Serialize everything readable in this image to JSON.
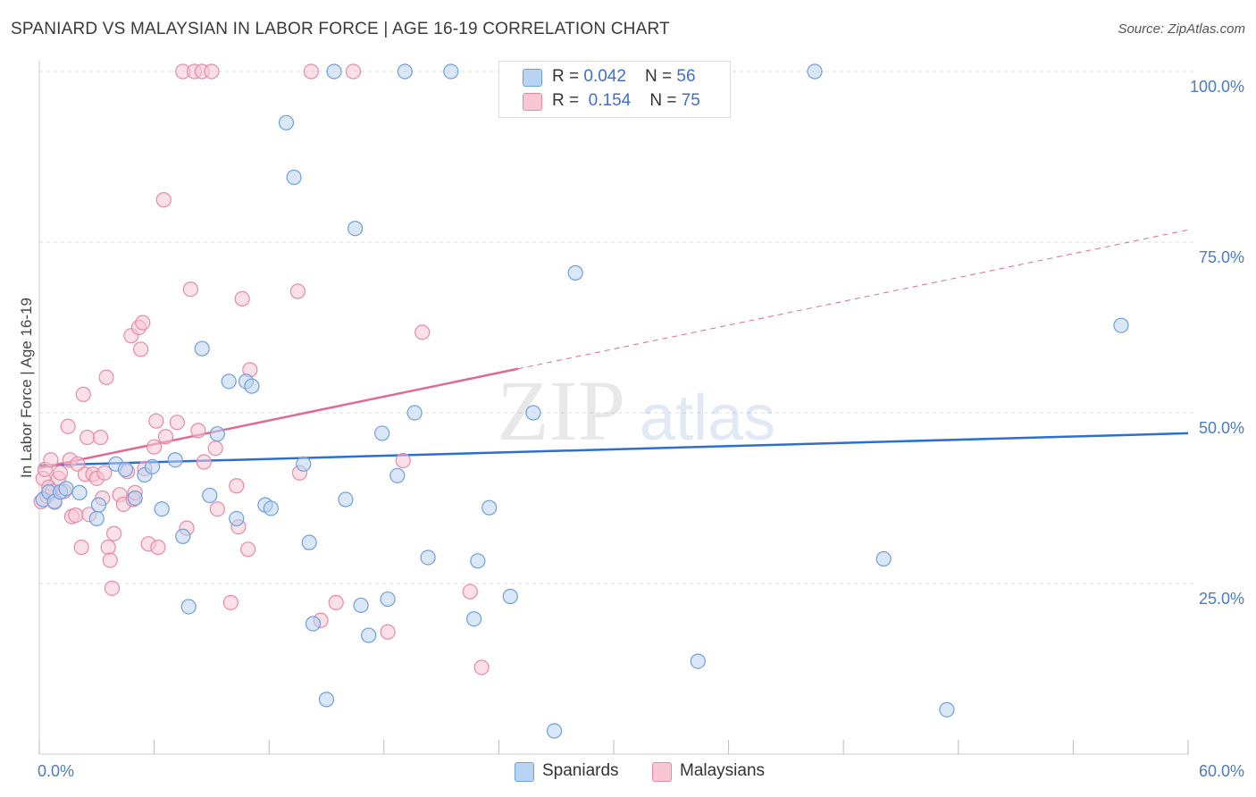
{
  "title": "SPANIARD VS MALAYSIAN IN LABOR FORCE | AGE 16-19 CORRELATION CHART",
  "source": "Source: ZipAtlas.com",
  "watermark": {
    "left": "ZIP",
    "right": "atlas"
  },
  "legend_top": {
    "rows": [
      {
        "r_label": "R = ",
        "r_value": "0.042",
        "n_label": "N = ",
        "n_value": "56"
      },
      {
        "r_label": "R = ",
        "r_value": "0.154",
        "n_label": "N = ",
        "n_value": "75"
      }
    ]
  },
  "colors": {
    "blue_fill": "#b9d3f3",
    "blue_stroke": "#6d9fdd",
    "blue_line": "#2b6fcf",
    "pink_fill": "#f9c6d4",
    "pink_stroke": "#e88aa6",
    "pink_line": "#e06a93",
    "tick_text": "#4a7cc7",
    "grid": "#dddddd"
  },
  "chart_data": {
    "type": "scatter",
    "title": "SPANIARD VS MALAYSIAN IN LABOR FORCE | AGE 16-19 CORRELATION CHART",
    "xlabel": "",
    "ylabel": "In Labor Force | Age 16-19",
    "xlim": [
      0,
      60
    ],
    "ylim": [
      0,
      100
    ],
    "x_tick_labels": [
      "0.0%",
      "60.0%"
    ],
    "y_tick_labels": [
      "25.0%",
      "50.0%",
      "75.0%",
      "100.0%"
    ],
    "y_ticks": [
      25,
      50,
      75,
      100
    ],
    "grid": true,
    "legend_position": "bottom",
    "series": [
      {
        "name": "Spaniards",
        "r": 0.042,
        "n": 56,
        "trend": {
          "x": [
            0,
            60
          ],
          "y": [
            42.3,
            47.0
          ],
          "dashed_from": null
        },
        "points": [
          [
            0.2,
            37.3
          ],
          [
            0.5,
            38.4
          ],
          [
            0.8,
            37.0
          ],
          [
            1.1,
            38.4
          ],
          [
            1.4,
            38.9
          ],
          [
            2.1,
            38.3
          ],
          [
            3.1,
            36.5
          ],
          [
            3.0,
            34.5
          ],
          [
            4.0,
            42.5
          ],
          [
            4.5,
            41.7
          ],
          [
            5.0,
            37.5
          ],
          [
            5.5,
            40.9
          ],
          [
            5.9,
            42.1
          ],
          [
            6.4,
            35.9
          ],
          [
            7.1,
            43.1
          ],
          [
            7.5,
            31.9
          ],
          [
            7.8,
            21.6
          ],
          [
            8.5,
            59.4
          ],
          [
            8.9,
            37.9
          ],
          [
            9.3,
            46.9
          ],
          [
            9.9,
            54.6
          ],
          [
            10.3,
            34.5
          ],
          [
            10.8,
            54.6
          ],
          [
            11.1,
            53.9
          ],
          [
            11.8,
            36.5
          ],
          [
            12.1,
            36.0
          ],
          [
            12.9,
            92.5
          ],
          [
            13.3,
            84.5
          ],
          [
            13.8,
            42.5
          ],
          [
            14.1,
            31.0
          ],
          [
            14.3,
            19.1
          ],
          [
            15.0,
            8.0
          ],
          [
            15.4,
            100.0
          ],
          [
            16.0,
            37.3
          ],
          [
            16.5,
            77.0
          ],
          [
            16.8,
            21.8
          ],
          [
            17.2,
            17.4
          ],
          [
            17.9,
            47.0
          ],
          [
            18.2,
            22.7
          ],
          [
            18.7,
            40.8
          ],
          [
            19.1,
            100.0
          ],
          [
            19.6,
            50.0
          ],
          [
            20.3,
            28.8
          ],
          [
            21.5,
            100.0
          ],
          [
            22.7,
            19.8
          ],
          [
            22.9,
            28.3
          ],
          [
            23.5,
            36.1
          ],
          [
            24.6,
            23.1
          ],
          [
            25.8,
            50.0
          ],
          [
            26.9,
            3.4
          ],
          [
            28.0,
            70.5
          ],
          [
            34.4,
            13.6
          ],
          [
            40.5,
            100.0
          ],
          [
            44.1,
            28.6
          ],
          [
            47.4,
            6.5
          ],
          [
            56.5,
            62.8
          ]
        ]
      },
      {
        "name": "Malaysians",
        "r": 0.154,
        "n": 75,
        "trend": {
          "x": [
            0,
            60
          ],
          "y": [
            41.9,
            76.8
          ],
          "dashed_from": 25.0
        },
        "points": [
          [
            0.1,
            37.0
          ],
          [
            0.2,
            40.4
          ],
          [
            0.3,
            41.7
          ],
          [
            0.4,
            37.8
          ],
          [
            0.5,
            39.1
          ],
          [
            0.6,
            43.1
          ],
          [
            0.7,
            38.5
          ],
          [
            0.8,
            36.9
          ],
          [
            1.0,
            40.4
          ],
          [
            1.1,
            41.2
          ],
          [
            1.3,
            38.5
          ],
          [
            1.5,
            48.0
          ],
          [
            1.6,
            43.1
          ],
          [
            1.7,
            34.8
          ],
          [
            1.9,
            35.0
          ],
          [
            2.0,
            42.5
          ],
          [
            2.2,
            30.3
          ],
          [
            2.3,
            52.7
          ],
          [
            2.4,
            41.0
          ],
          [
            2.5,
            46.4
          ],
          [
            2.6,
            35.1
          ],
          [
            2.8,
            41.0
          ],
          [
            3.0,
            40.4
          ],
          [
            3.2,
            46.4
          ],
          [
            3.3,
            37.5
          ],
          [
            3.4,
            41.2
          ],
          [
            3.5,
            55.2
          ],
          [
            3.6,
            30.3
          ],
          [
            3.7,
            28.4
          ],
          [
            3.8,
            24.3
          ],
          [
            3.9,
            32.3
          ],
          [
            4.2,
            38.0
          ],
          [
            4.4,
            36.6
          ],
          [
            4.6,
            41.4
          ],
          [
            4.8,
            61.3
          ],
          [
            4.9,
            37.3
          ],
          [
            5.0,
            38.3
          ],
          [
            5.2,
            62.5
          ],
          [
            5.3,
            59.3
          ],
          [
            5.4,
            63.2
          ],
          [
            5.5,
            41.8
          ],
          [
            5.7,
            30.8
          ],
          [
            6.0,
            45.0
          ],
          [
            6.1,
            48.8
          ],
          [
            6.2,
            30.3
          ],
          [
            6.5,
            81.2
          ],
          [
            6.6,
            46.5
          ],
          [
            7.2,
            48.6
          ],
          [
            7.5,
            100.0
          ],
          [
            7.7,
            33.1
          ],
          [
            7.9,
            68.1
          ],
          [
            8.1,
            100.0
          ],
          [
            8.3,
            47.4
          ],
          [
            8.5,
            100.0
          ],
          [
            8.6,
            42.8
          ],
          [
            9.0,
            100.0
          ],
          [
            9.2,
            44.8
          ],
          [
            9.3,
            35.9
          ],
          [
            10.0,
            22.2
          ],
          [
            10.3,
            39.3
          ],
          [
            10.4,
            33.3
          ],
          [
            10.6,
            66.7
          ],
          [
            10.9,
            30.0
          ],
          [
            11.0,
            56.3
          ],
          [
            13.5,
            67.8
          ],
          [
            13.6,
            41.2
          ],
          [
            14.2,
            100.0
          ],
          [
            14.7,
            19.6
          ],
          [
            15.5,
            22.2
          ],
          [
            16.4,
            100.0
          ],
          [
            18.2,
            17.9
          ],
          [
            19.0,
            43.0
          ],
          [
            20.0,
            61.8
          ],
          [
            22.5,
            23.8
          ],
          [
            23.1,
            12.7
          ]
        ]
      }
    ]
  },
  "legend_bottom": {
    "items": [
      "Spaniards",
      "Malaysians"
    ]
  }
}
